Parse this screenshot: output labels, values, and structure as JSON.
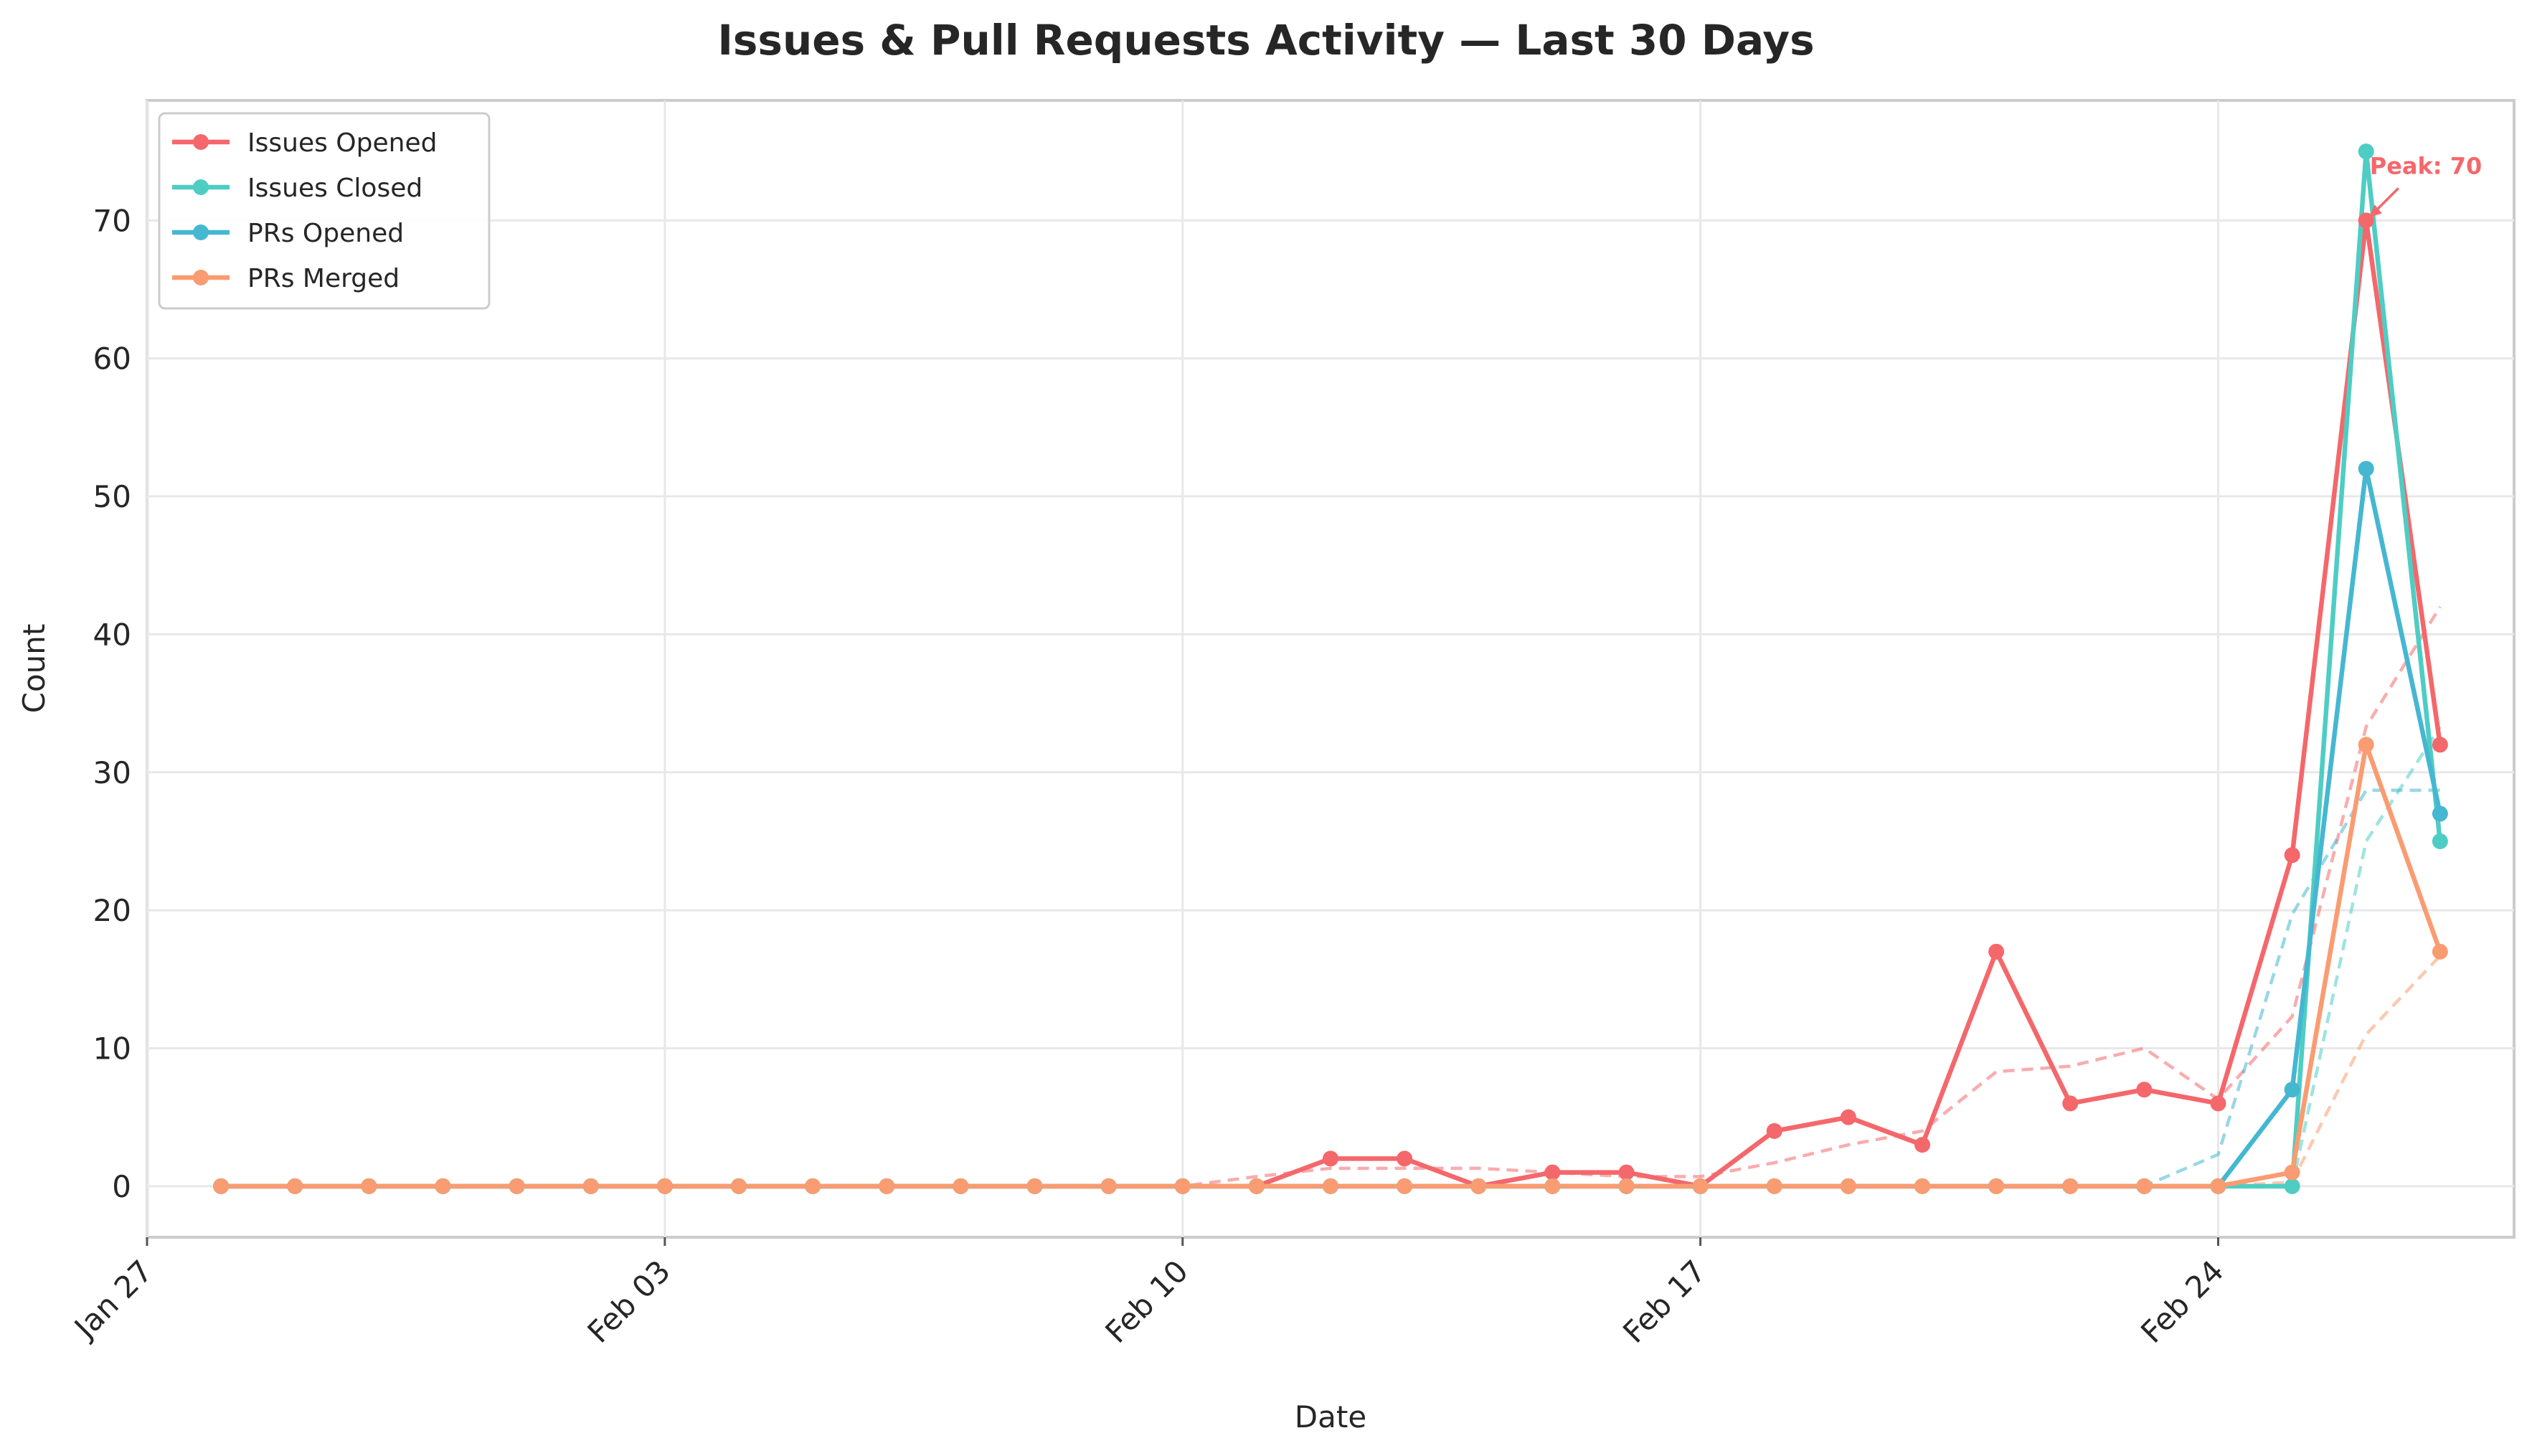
{
  "title": "Issues & Pull Requests Activity — Last 30 Days",
  "chart_data": {
    "type": "line",
    "title": "Issues & Pull Requests Activity — Last 30 Days",
    "xlabel": "Date",
    "ylabel": "Count",
    "x": [
      "Jan 28",
      "Jan 29",
      "Jan 30",
      "Jan 31",
      "Feb 01",
      "Feb 02",
      "Feb 03",
      "Feb 04",
      "Feb 05",
      "Feb 06",
      "Feb 07",
      "Feb 08",
      "Feb 09",
      "Feb 10",
      "Feb 11",
      "Feb 12",
      "Feb 13",
      "Feb 14",
      "Feb 15",
      "Feb 16",
      "Feb 17",
      "Feb 18",
      "Feb 19",
      "Feb 20",
      "Feb 21",
      "Feb 22",
      "Feb 23",
      "Feb 24",
      "Feb 25",
      "Feb 26",
      "Feb 27"
    ],
    "x_ticks": [
      "Jan 27",
      "Feb 03",
      "Feb 10",
      "Feb 17",
      "Feb 24"
    ],
    "y_ticks": [
      0,
      10,
      20,
      30,
      40,
      50,
      60,
      70
    ],
    "ylim": [
      -3.7,
      78.7
    ],
    "xlim": [
      "Jan 27",
      "Feb 28"
    ],
    "grid": true,
    "legend_position": "top-left",
    "series": [
      {
        "name": "Issues Opened",
        "color": "#f4676b",
        "values": [
          0,
          0,
          0,
          0,
          0,
          0,
          0,
          0,
          0,
          0,
          0,
          0,
          0,
          0,
          0,
          2,
          2,
          0,
          1,
          1,
          0,
          4,
          5,
          3,
          17,
          6,
          7,
          6,
          24,
          70,
          32
        ],
        "rolling_avg": [
          0,
          0,
          0,
          0,
          0,
          0,
          0,
          0,
          0,
          0,
          0,
          0,
          0,
          0,
          0.7,
          1.3,
          1.3,
          1.3,
          1.0,
          0.7,
          0.7,
          1.7,
          3.0,
          4.0,
          8.3,
          8.7,
          10.0,
          6.3,
          12.3,
          33.3,
          42.0
        ]
      },
      {
        "name": "Issues Closed",
        "color": "#4ecdc4",
        "values": [
          0,
          0,
          0,
          0,
          0,
          0,
          0,
          0,
          0,
          0,
          0,
          0,
          0,
          0,
          0,
          0,
          0,
          0,
          0,
          0,
          0,
          0,
          0,
          0,
          0,
          0,
          0,
          0,
          0,
          75,
          25
        ],
        "rolling_avg": [
          0,
          0,
          0,
          0,
          0,
          0,
          0,
          0,
          0,
          0,
          0,
          0,
          0,
          0,
          0,
          0,
          0,
          0,
          0,
          0,
          0,
          0,
          0,
          0,
          0,
          0,
          0,
          0,
          0,
          25.0,
          33.3
        ]
      },
      {
        "name": "PRs Opened",
        "color": "#45b7d1",
        "values": [
          0,
          0,
          0,
          0,
          0,
          0,
          0,
          0,
          0,
          0,
          0,
          0,
          0,
          0,
          0,
          0,
          0,
          0,
          0,
          0,
          0,
          0,
          0,
          0,
          0,
          0,
          0,
          0,
          7,
          52,
          27
        ],
        "rolling_avg": [
          0,
          0,
          0,
          0,
          0,
          0,
          0,
          0,
          0,
          0,
          0,
          0,
          0,
          0,
          0,
          0,
          0,
          0,
          0,
          0,
          0,
          0,
          0,
          0,
          0,
          0,
          0,
          2.3,
          19.7,
          28.7,
          28.7
        ]
      },
      {
        "name": "PRs Merged",
        "color": "#fa9c71",
        "values": [
          0,
          0,
          0,
          0,
          0,
          0,
          0,
          0,
          0,
          0,
          0,
          0,
          0,
          0,
          0,
          0,
          0,
          0,
          0,
          0,
          0,
          0,
          0,
          0,
          0,
          0,
          0,
          0,
          1,
          32,
          17
        ],
        "rolling_avg": [
          0,
          0,
          0,
          0,
          0,
          0,
          0,
          0,
          0,
          0,
          0,
          0,
          0,
          0,
          0,
          0,
          0,
          0,
          0,
          0,
          0,
          0,
          0,
          0,
          0,
          0,
          0,
          0,
          0.3,
          11.0,
          16.7
        ]
      }
    ],
    "annotations": [
      {
        "text": "Peak: 70",
        "x": "Feb 26",
        "y": 70,
        "color": "#f4676b"
      }
    ]
  }
}
